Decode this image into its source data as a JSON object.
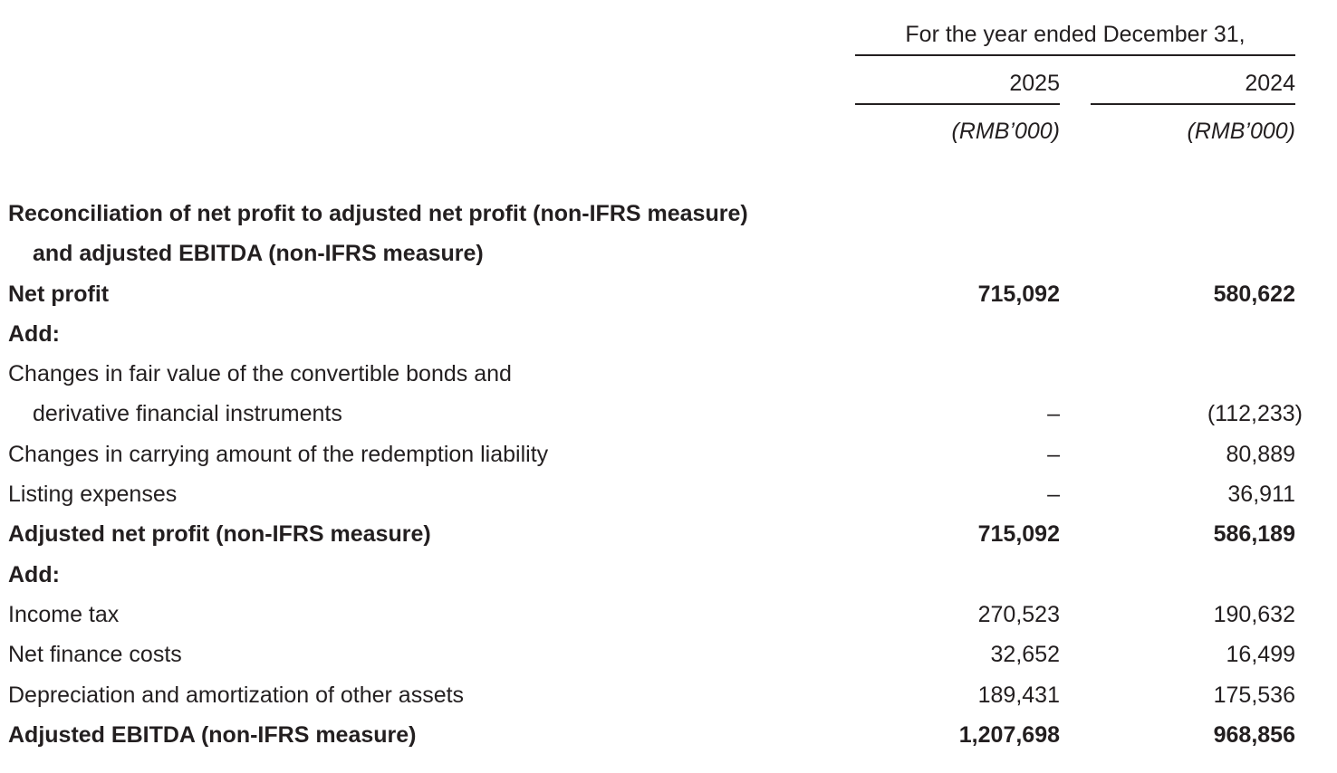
{
  "header": {
    "period": "For the year ended December 31,",
    "years": [
      "2025",
      "2024"
    ],
    "units": [
      "(RMB’000)",
      "(RMB’000)"
    ]
  },
  "rows": [
    {
      "label": "Reconciliation of net profit to adjusted net profit (non-IFRS measure)",
      "v2025": "",
      "v2024": ""
    },
    {
      "label": "and adjusted EBITDA (non-IFRS measure)",
      "v2025": "",
      "v2024": ""
    },
    {
      "label": "Net profit",
      "v2025": "715,092",
      "v2024": "580,622"
    },
    {
      "label": "Add:",
      "v2025": "",
      "v2024": ""
    },
    {
      "label": "Changes in fair value of the convertible bonds and",
      "v2025": "",
      "v2024": ""
    },
    {
      "label": "derivative financial instruments",
      "v2025": "–",
      "v2024": "(112,233)"
    },
    {
      "label": "Changes in carrying amount of the redemption liability",
      "v2025": "–",
      "v2024": "80,889"
    },
    {
      "label": "Listing expenses",
      "v2025": "–",
      "v2024": "36,911"
    },
    {
      "label": "Adjusted net profit (non-IFRS measure)",
      "v2025": "715,092",
      "v2024": "586,189"
    },
    {
      "label": "Add:",
      "v2025": "",
      "v2024": ""
    },
    {
      "label": "Income tax",
      "v2025": "270,523",
      "v2024": "190,632"
    },
    {
      "label": "Net finance costs",
      "v2025": "32,652",
      "v2024": "16,499"
    },
    {
      "label": "Depreciation and amortization of other assets",
      "v2025": "189,431",
      "v2024": "175,536"
    },
    {
      "label": "Adjusted EBITDA (non-IFRS measure)",
      "v2025": "1,207,698",
      "v2024": "968,856"
    }
  ]
}
